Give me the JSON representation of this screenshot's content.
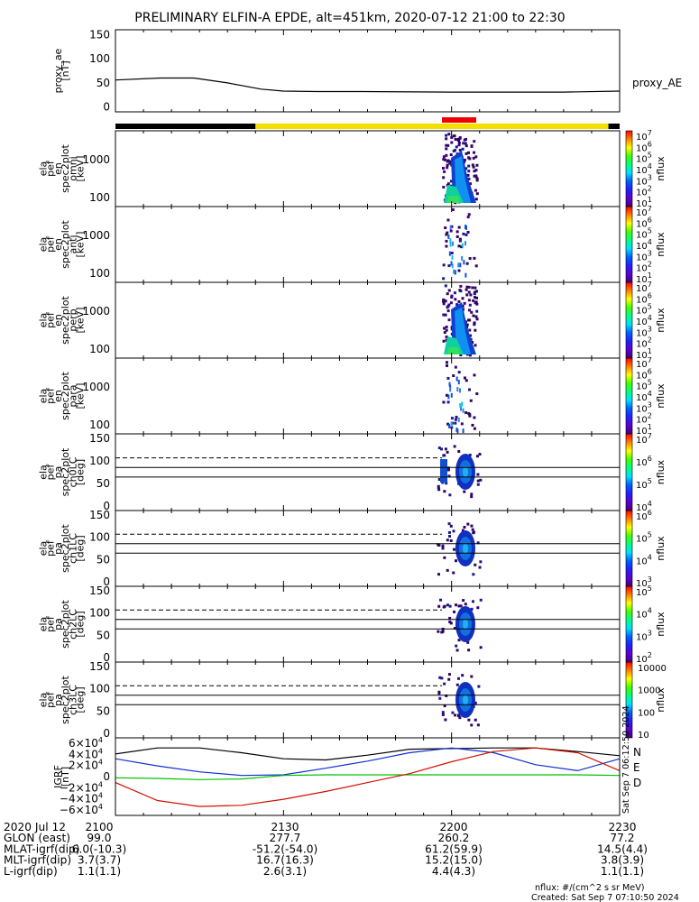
{
  "title": "PRELIMINARY ELFIN-A EPDE, alt=451km, 2020-07-12 21:00 to 22:30",
  "colors": {
    "orbit_dark": "#000000",
    "orbit_science": "#f4e000",
    "orbit_flag": "#f00000",
    "trace_black": "#000000",
    "trace_blue": "#1030d0",
    "trace_green": "#00c000",
    "trace_red": "#d01000"
  },
  "chart_data": [
    {
      "type": "line",
      "ylabel": [
        "proxy_ae",
        "[nT]"
      ],
      "yticks": [
        "150",
        "100",
        "50",
        "0"
      ],
      "ylim": [
        -10,
        160
      ],
      "x_minutes": [
        0,
        8,
        14,
        20,
        26,
        30,
        36,
        44,
        60,
        70,
        80,
        90
      ],
      "series": [
        {
          "name": "proxy_AE",
          "values": [
            56,
            60,
            60,
            50,
            37,
            33,
            32,
            32,
            31,
            31,
            31,
            33
          ]
        }
      ]
    },
    {
      "type": "heatmap",
      "ylabel": [
        "ela",
        "pef",
        "en",
        "spec2plot",
        "omni",
        "[keV]"
      ],
      "yticks": [
        "1000",
        "100"
      ],
      "zlabel": "nflux",
      "ztick_exponents": [
        "7",
        "6",
        "5",
        "4",
        "3",
        "2",
        "1"
      ]
    },
    {
      "type": "heatmap",
      "ylabel": [
        "ela",
        "pef",
        "en",
        "spec2plot",
        "anti",
        "[keV]"
      ],
      "yticks": [
        "1000",
        "100"
      ],
      "zlabel": "nflux",
      "ztick_exponents": [
        "7",
        "6",
        "5",
        "4",
        "3",
        "2",
        "1"
      ]
    },
    {
      "type": "heatmap",
      "ylabel": [
        "ela",
        "pef",
        "en",
        "spec2plot",
        "perp",
        "[keV]"
      ],
      "yticks": [
        "1000",
        "100"
      ],
      "zlabel": "nflux",
      "ztick_exponents": [
        "7",
        "6",
        "5",
        "4",
        "3",
        "2",
        "1"
      ]
    },
    {
      "type": "heatmap",
      "ylabel": [
        "ela",
        "pef",
        "en",
        "spec2plot",
        "para",
        "[keV]"
      ],
      "yticks": [
        "1000",
        "100"
      ],
      "zlabel": "nflux",
      "ztick_exponents": [
        "7",
        "6",
        "5",
        "4",
        "3",
        "2",
        "1"
      ]
    },
    {
      "type": "heatmap",
      "ylabel": [
        "ela",
        "pef",
        "pa",
        "spec2plot",
        "ch0LC",
        "[deg]"
      ],
      "yticks": [
        "150",
        "100",
        "50",
        "0"
      ],
      "zlabel": "nflux",
      "ztick_exponents": [
        "7",
        "6",
        "5",
        "4"
      ]
    },
    {
      "type": "heatmap",
      "ylabel": [
        "ela",
        "pef",
        "pa",
        "spec2plot",
        "ch1LC",
        "[deg]"
      ],
      "yticks": [
        "150",
        "100",
        "50",
        "0"
      ],
      "zlabel": "nflux",
      "ztick_exponents": [
        "6",
        "5",
        "4",
        "3"
      ]
    },
    {
      "type": "heatmap",
      "ylabel": [
        "ela",
        "pef",
        "pa",
        "spec2plot",
        "ch2LC",
        "[deg]"
      ],
      "yticks": [
        "150",
        "100",
        "50",
        "0"
      ],
      "zlabel": "nflux",
      "ztick_exponents": [
        "5",
        "4",
        "3",
        "2"
      ]
    },
    {
      "type": "heatmap",
      "ylabel": [
        "ela",
        "pef",
        "pa",
        "spec2plot",
        "ch3LC",
        "[deg]"
      ],
      "yticks": [
        "150",
        "100",
        "50",
        "0"
      ],
      "zlabel": "nflux",
      "zticks": [
        "10000",
        "1000",
        "100",
        "10"
      ]
    },
    {
      "type": "line",
      "ylabel": [
        "IGRF",
        "[nT]"
      ],
      "yticks_mantissa": [
        "6×10",
        "4×10",
        "2×10",
        "0",
        "−2×10",
        "−4×10",
        "−6×10"
      ],
      "ytick_exponent": "4",
      "ylim": [
        -65000,
        65000
      ],
      "legend": [
        "N",
        "E",
        "D"
      ],
      "x_minutes": [
        0,
        7.5,
        15,
        22.5,
        30,
        37.5,
        45,
        52.5,
        60,
        67.5,
        75,
        82.5,
        90
      ],
      "series": [
        {
          "values": [
            38000,
            48000,
            48000,
            40000,
            30000,
            28000,
            36000,
            46000,
            47000,
            48000,
            48000,
            42000,
            35000
          ]
        },
        {
          "values": [
            30000,
            18000,
            8000,
            2000,
            3000,
            14000,
            26000,
            40000,
            48000,
            40000,
            20000,
            10000,
            30000
          ]
        },
        {
          "values": [
            -2000,
            -3000,
            -5000,
            -4000,
            2000,
            3000,
            3000,
            3000,
            3000,
            3000,
            3000,
            3000,
            2000
          ]
        },
        {
          "values": [
            -10000,
            -40000,
            -50000,
            -48000,
            -38000,
            -25000,
            -10000,
            5000,
            25000,
            42000,
            48000,
            40000,
            10000
          ]
        }
      ]
    }
  ],
  "xaxis": {
    "tick_labels": [
      "2100",
      "2130",
      "2200",
      "2230"
    ],
    "rows": [
      {
        "label": "2020 Jul 12",
        "values": [
          "",
          "",
          "",
          ""
        ]
      },
      {
        "label": "GLON (east)",
        "values": [
          "99.0",
          "277.7",
          "260.2",
          "77.2"
        ]
      },
      {
        "label": "MLAT-igrf(dip)",
        "values": [
          "6.0(-10.3)",
          "-51.2(-54.0)",
          "61.2(59.9)",
          "14.5(4.4)"
        ]
      },
      {
        "label": "MLT-igrf(dip)",
        "values": [
          "3.7(3.7)",
          "16.7(16.3)",
          "15.2(15.0)",
          "3.8(3.9)"
        ]
      },
      {
        "label": "L-igrf(dip)",
        "values": [
          "1.1(1.1)",
          "2.6(3.1)",
          "4.4(4.3)",
          "1.1(1.1)"
        ]
      }
    ]
  },
  "flux_units": "nflux: #/(cm^2 s sr MeV)",
  "created": "Created: Sat Sep  7 07:10:50 2024",
  "side_stamp": "Sat Sep  7 06:12:50 2024"
}
